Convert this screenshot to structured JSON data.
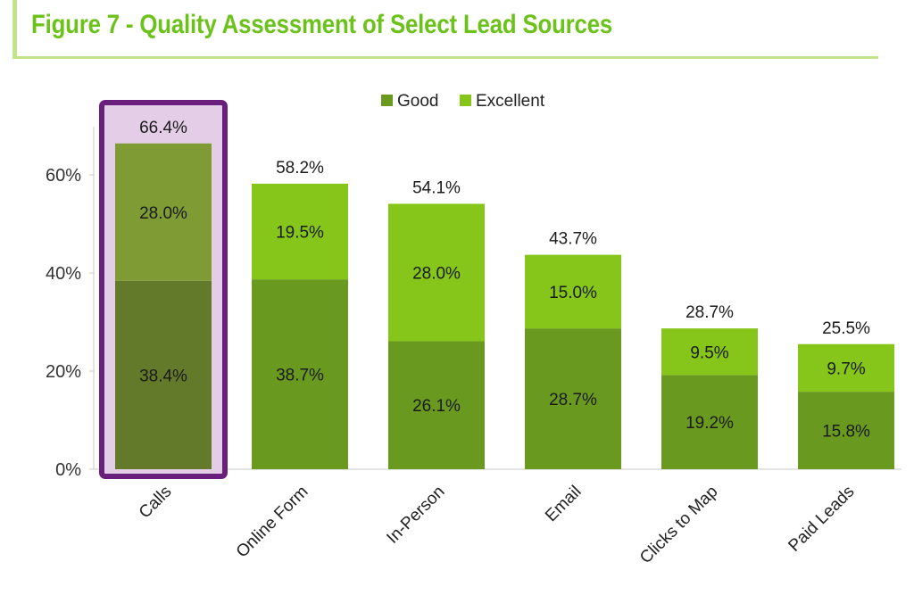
{
  "figure": {
    "title": "Figure 7 - Quality Assessment of Select Lead Sources"
  },
  "chart_data": {
    "type": "bar",
    "stacked": true,
    "title": "",
    "xlabel": "",
    "ylabel": "",
    "categories": [
      "Calls",
      "Online Form",
      "In-Person",
      "Email",
      "Clicks to Map",
      "Paid Leads"
    ],
    "series": [
      {
        "name": "Good",
        "values": [
          38.4,
          38.7,
          26.1,
          28.7,
          19.2,
          15.8
        ],
        "color": "#699a1f"
      },
      {
        "name": "Excellent",
        "values": [
          28.0,
          19.5,
          28.0,
          15.0,
          9.5,
          9.7
        ],
        "color": "#86c61a"
      }
    ],
    "segment_labels": [
      [
        "38.4%",
        "38.7%",
        "26.1%",
        "28.7%",
        "19.2%",
        "15.8%"
      ],
      [
        "28.0%",
        "19.5%",
        "28.0%",
        "15.0%",
        "9.5%",
        "9.7%"
      ]
    ],
    "totals": [
      66.4,
      58.2,
      54.1,
      43.7,
      28.7,
      25.5
    ],
    "total_labels": [
      "66.4%",
      "58.2%",
      "54.1%",
      "43.7%",
      "28.7%",
      "25.5%"
    ],
    "yticks": [
      0,
      20,
      40,
      60
    ],
    "ytick_labels": [
      "0%",
      "20%",
      "40%",
      "60%"
    ],
    "ylim": [
      0,
      70
    ],
    "grid": false,
    "legend_position": "top-center",
    "highlight": {
      "category": "Calls",
      "border_color": "#6b1f7c",
      "fill_color": "#e3cde7",
      "good_color": "#637a2a",
      "excellent_color": "#7f9c34"
    }
  }
}
